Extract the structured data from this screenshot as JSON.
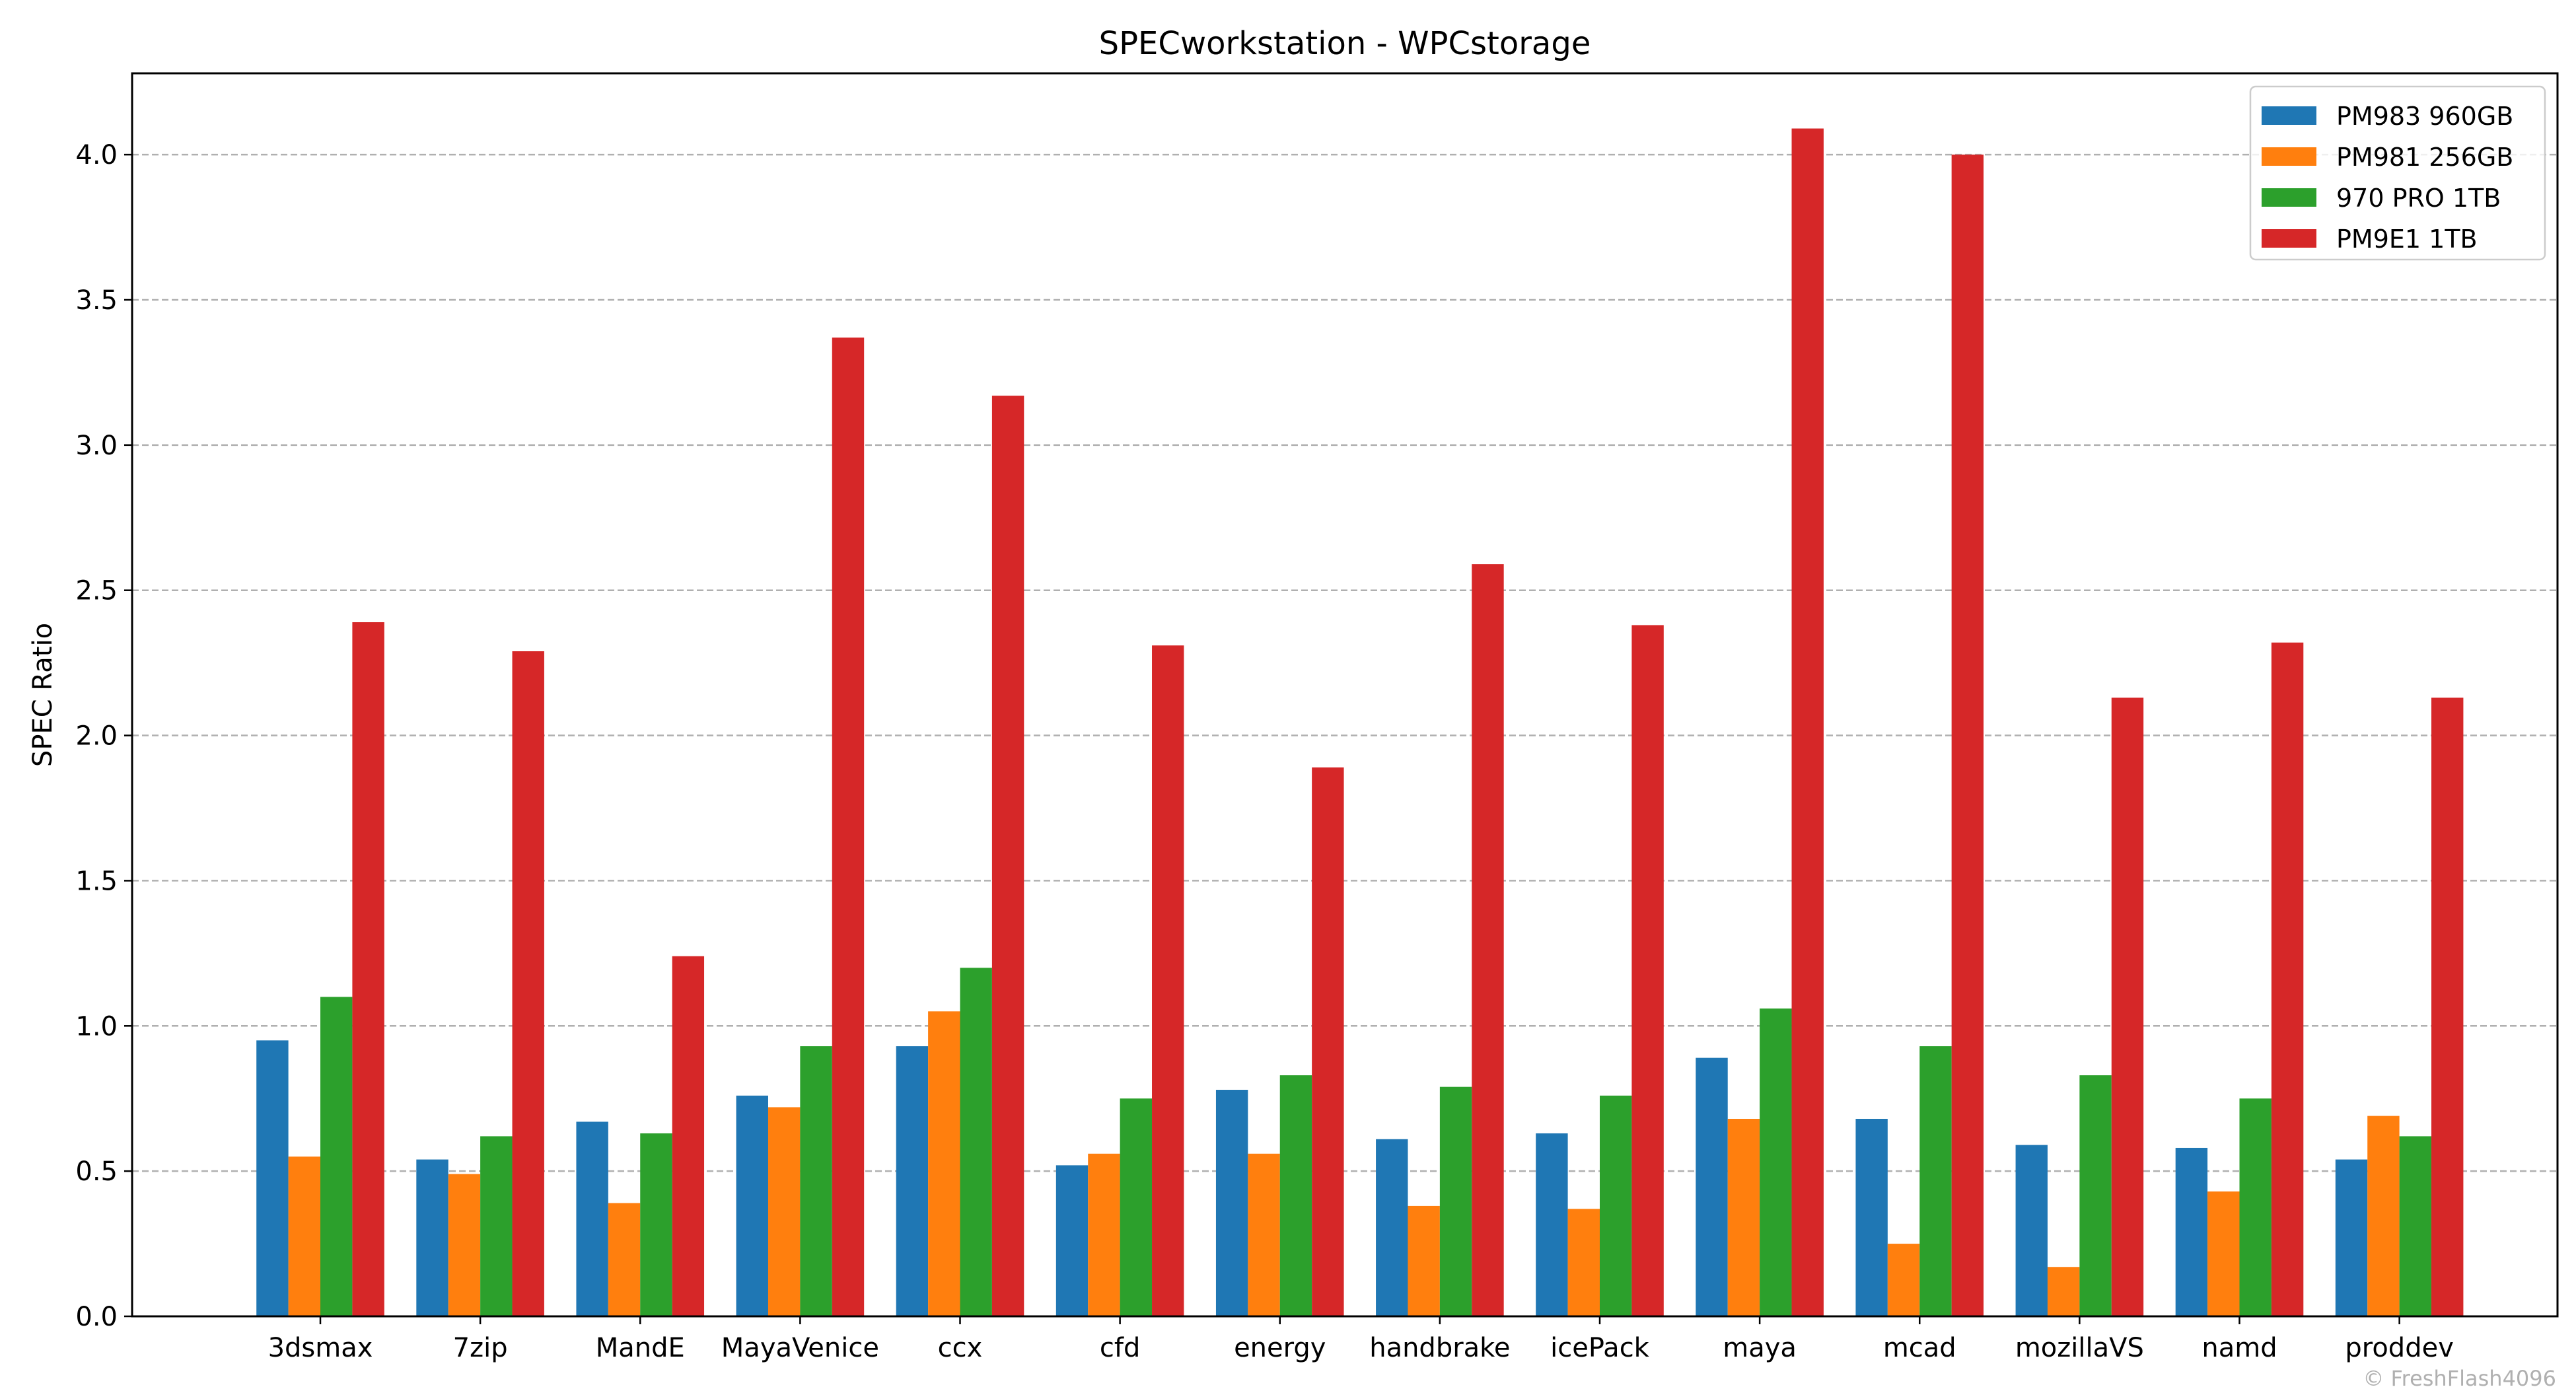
{
  "chart_data": {
    "type": "bar",
    "title": "SPECworkstation - WPCstorage",
    "xlabel": "",
    "ylabel": "SPEC Ratio",
    "ylim": [
      0,
      4.28
    ],
    "yticks": [
      "0.0",
      "0.5",
      "1.0",
      "1.5",
      "2.0",
      "2.5",
      "3.0",
      "3.5",
      "4.0"
    ],
    "grid": "horizontal dashed",
    "legend_position": "top-right",
    "categories": [
      "3dsmax",
      "7zip",
      "MandE",
      "MayaVenice",
      "ccx",
      "cfd",
      "energy",
      "handbrake",
      "icePack",
      "maya",
      "mcad",
      "mozillaVS",
      "namd",
      "proddev"
    ],
    "series": [
      {
        "name": "PM983 960GB",
        "color": "#1f77b4",
        "values": [
          0.95,
          0.54,
          0.67,
          0.76,
          0.93,
          0.52,
          0.78,
          0.61,
          0.63,
          0.89,
          0.68,
          0.59,
          0.58,
          0.54
        ]
      },
      {
        "name": "PM981 256GB",
        "color": "#ff7f0e",
        "values": [
          0.55,
          0.49,
          0.39,
          0.72,
          1.05,
          0.56,
          0.56,
          0.38,
          0.37,
          0.68,
          0.25,
          0.17,
          0.43,
          0.69
        ]
      },
      {
        "name": "970 PRO 1TB",
        "color": "#2ca02c",
        "values": [
          1.1,
          0.62,
          0.63,
          0.93,
          1.2,
          0.75,
          0.83,
          0.79,
          0.76,
          1.06,
          0.93,
          0.83,
          0.75,
          0.62
        ]
      },
      {
        "name": "PM9E1 1TB",
        "color": "#d62728",
        "values": [
          2.39,
          2.29,
          1.24,
          3.37,
          3.17,
          2.31,
          1.89,
          2.59,
          2.38,
          4.09,
          4.0,
          2.13,
          2.32,
          2.13
        ]
      }
    ]
  },
  "credit": "© FreshFlash4096"
}
